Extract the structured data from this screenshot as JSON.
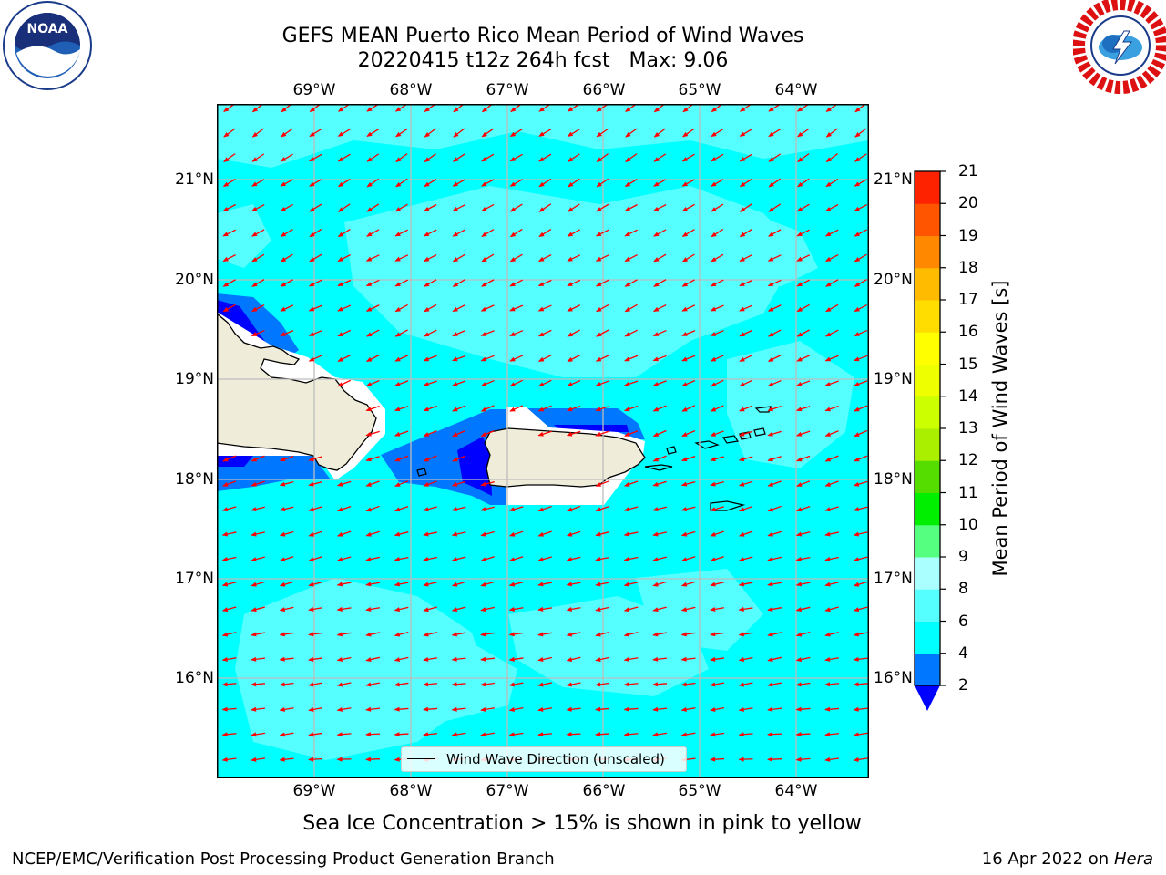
{
  "figure": {
    "title_line1": "GEFS MEAN Puerto Rico Mean Period of Wind Waves",
    "title_line2": "20220415 t12z 264h fcst   Max: 9.06",
    "sea_ice_note": "Sea Ice Concentration > 15% is shown in pink to yellow",
    "footer_left": "NCEP/EMC/Verification Post Processing Product Generation Branch",
    "footer_date": "16 Apr 2022 on ",
    "footer_host": "Hera"
  },
  "logos": {
    "noaa": {
      "icon": "noaa-logo",
      "text": "NOAA"
    },
    "nws": {
      "icon": "nws-logo"
    }
  },
  "map": {
    "lon_labels": [
      "69°W",
      "68°W",
      "67°W",
      "66°W",
      "65°W",
      "64°W"
    ],
    "lat_labels": [
      "21°N",
      "20°N",
      "19°N",
      "18°N",
      "17°N",
      "16°N"
    ],
    "colors": {
      "land": "#efedda",
      "white_area": "#ffffff",
      "grid": "#bdbdbd",
      "arrow": "#ff0000",
      "sea_4_6": "#00ffff",
      "sea_6_8": "#55ffff",
      "sea_2_4": "#0077ff",
      "sea_lt_2": "#0000ff"
    },
    "legend_label": "Wind Wave Direction (unscaled)"
  },
  "colorbar": {
    "label": "Mean Period of Wind Waves [s]",
    "ticks": [
      "2",
      "4",
      "6",
      "8",
      "9",
      "10",
      "11",
      "12",
      "13",
      "14",
      "15",
      "16",
      "17",
      "18",
      "19",
      "20",
      "21"
    ],
    "colors": [
      "#0077ff",
      "#00ffff",
      "#55ffff",
      "#aaffff",
      "#55ff80",
      "#00ee00",
      "#55dd00",
      "#aaee00",
      "#ccff00",
      "#eeff00",
      "#ffff00",
      "#ffdd00",
      "#ffbb00",
      "#ff8800",
      "#ff5500",
      "#ff2200"
    ],
    "under_color": "#0000ff"
  }
}
